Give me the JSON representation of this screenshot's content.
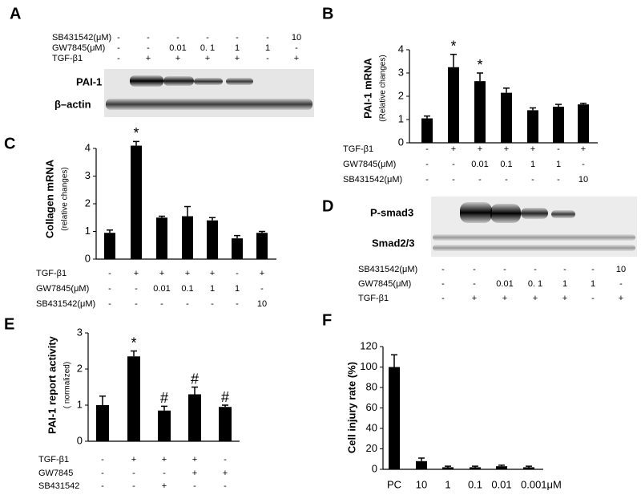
{
  "blots": [
    {
      "letter": "A",
      "bands": [
        "PAI-1",
        "β–actin"
      ],
      "conditions": [
        {
          "label": "SB431542(μM)",
          "cells": [
            "-",
            "-",
            "-",
            "-",
            "-",
            "-",
            "10"
          ]
        },
        {
          "label": "GW7845(μM)",
          "cells": [
            "-",
            "-",
            "0.01",
            "0. 1",
            "1",
            "1",
            "-"
          ]
        },
        {
          "label": "TGF-β1",
          "cells": [
            "-",
            "+",
            "+",
            "+",
            "+",
            "-",
            "+"
          ]
        }
      ]
    },
    {
      "letter": "D",
      "bands": [
        "P-smad3",
        "Smad2/3"
      ],
      "conditions": [
        {
          "label": "SB431542(μM)",
          "cells": [
            "-",
            "-",
            "-",
            "-",
            "-",
            "-",
            "10"
          ]
        },
        {
          "label": "GW7845(μM)",
          "cells": [
            "-",
            "-",
            "0.01",
            "0. 1",
            "1",
            "1",
            "-"
          ]
        },
        {
          "label": "TGF-β1",
          "cells": [
            "-",
            "+",
            "+",
            "+",
            "+",
            "-",
            "+"
          ]
        }
      ]
    }
  ],
  "chart_data": [
    {
      "type": "bar",
      "letter": "B",
      "ylabel": "PAI-1 mRNA",
      "ylabel_sub": "(Relative changes)",
      "color": "#000000",
      "values": [
        1.05,
        3.25,
        2.65,
        2.15,
        1.4,
        1.55,
        1.65
      ],
      "errors": [
        0.1,
        0.55,
        0.35,
        0.2,
        0.1,
        0.1,
        0.05
      ],
      "annotations": [
        null,
        "*",
        "*",
        null,
        null,
        null,
        null
      ],
      "ylim": [
        0,
        4
      ],
      "yticks": [
        0,
        1,
        2,
        3,
        4
      ],
      "conditions": [
        {
          "label": "TGF-β1",
          "cells": [
            "-",
            "+",
            "+",
            "+",
            "+",
            "-",
            "+"
          ]
        },
        {
          "label": "GW7845(μM)",
          "cells": [
            "-",
            "-",
            "0.01",
            "0.1",
            "1",
            "1",
            "-"
          ]
        },
        {
          "label": "SB431542(μM)",
          "cells": [
            "-",
            "-",
            "-",
            "-",
            "-",
            "-",
            "10"
          ]
        }
      ]
    },
    {
      "type": "bar",
      "letter": "C",
      "ylabel": "Collagen mRNA",
      "ylabel_sub": "(relative changes)",
      "color": "#000000",
      "values": [
        0.95,
        4.1,
        1.5,
        1.55,
        1.4,
        0.75,
        0.95
      ],
      "errors": [
        0.1,
        0.15,
        0.05,
        0.35,
        0.1,
        0.1,
        0.05
      ],
      "annotations": [
        null,
        "*",
        null,
        null,
        null,
        null,
        null
      ],
      "ylim": [
        0,
        4
      ],
      "yticks": [
        0,
        1,
        2,
        3,
        4
      ],
      "conditions": [
        {
          "label": "TGF-β1",
          "cells": [
            "-",
            "+",
            "+",
            "+",
            "+",
            "-",
            "+"
          ]
        },
        {
          "label": "GW7845(μM)",
          "cells": [
            "-",
            "-",
            "0.01",
            "0.1",
            "1",
            "1",
            "-"
          ]
        },
        {
          "label": "SB431542(μM)",
          "cells": [
            "-",
            "-",
            "-",
            "-",
            "-",
            "-",
            "10"
          ]
        }
      ]
    },
    {
      "type": "bar",
      "letter": "E",
      "ylabel": "PAI-1 report activity",
      "ylabel_sub": "( normalized)",
      "color": "#000000",
      "values": [
        1.0,
        2.35,
        0.85,
        1.3,
        0.95
      ],
      "errors": [
        0.25,
        0.15,
        0.12,
        0.2,
        0.05
      ],
      "annotations": [
        null,
        "*",
        "#",
        "#",
        "#"
      ],
      "ylim": [
        0,
        3
      ],
      "yticks": [
        0,
        1,
        2,
        3
      ],
      "conditions": [
        {
          "label": "TGF-β1",
          "cells": [
            "-",
            "+",
            "+",
            "+",
            "-"
          ]
        },
        {
          "label": "GW7845",
          "cells": [
            "-",
            "-",
            "-",
            "+",
            "+"
          ]
        },
        {
          "label": "SB431542",
          "cells": [
            "-",
            "-",
            "+",
            "-",
            "-"
          ]
        }
      ]
    },
    {
      "type": "bar",
      "letter": "F",
      "ylabel": "Cell injury rate (%)",
      "color": "#000000",
      "categories": [
        "PC",
        "10",
        "1",
        "0.1",
        "0.01",
        "0.001μM"
      ],
      "values": [
        100,
        8,
        2,
        2,
        3,
        2
      ],
      "errors": [
        12,
        3,
        1,
        1,
        1,
        1
      ],
      "ylim": [
        0,
        120
      ],
      "yticks": [
        0,
        20,
        40,
        60,
        80,
        100,
        120
      ]
    }
  ]
}
